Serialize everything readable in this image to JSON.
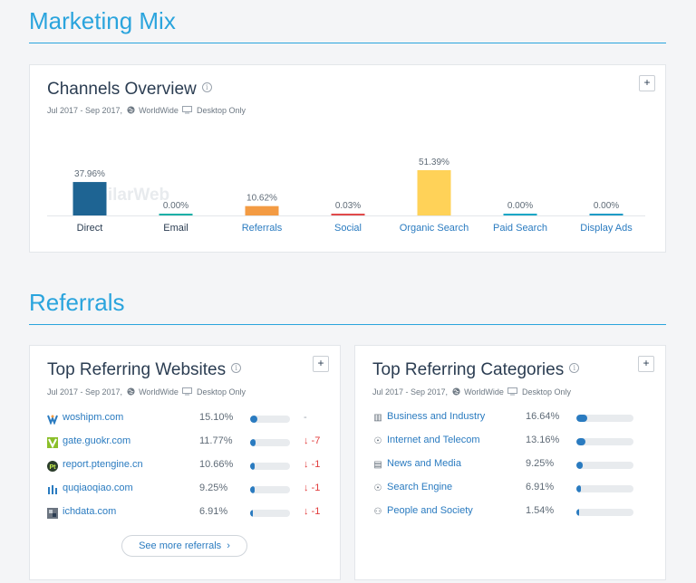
{
  "marketing_mix": {
    "title": "Marketing Mix"
  },
  "channels": {
    "title": "Channels Overview",
    "date_range": "Jul 2017 - Sep 2017,",
    "region": "WorldWide",
    "device": "Desktop Only",
    "add_label": "+",
    "watermark": "SimilarWeb"
  },
  "chart_data": {
    "type": "bar",
    "categories": [
      "Direct",
      "Email",
      "Referrals",
      "Social",
      "Organic Search",
      "Paid Search",
      "Display Ads"
    ],
    "values": [
      37.96,
      0.0,
      10.62,
      0.03,
      51.39,
      0.0,
      0.0
    ],
    "value_labels": [
      "37.96%",
      "0.00%",
      "10.62%",
      "0.03%",
      "51.39%",
      "0.00%",
      "0.00%"
    ],
    "colors": [
      "#1e6493",
      "#1ab0a6",
      "#f39b43",
      "#e14a4a",
      "#ffd258",
      "#16a7c6",
      "#1e9bc6"
    ],
    "label_colors": [
      "#2b3d52",
      "#2b3d52",
      "#2a7bc0",
      "#2a7bc0",
      "#2a7bc0",
      "#2a7bc0",
      "#2a7bc0"
    ],
    "ylim": [
      0,
      51.39
    ]
  },
  "referrals": {
    "title": "Referrals"
  },
  "top_websites": {
    "title": "Top Referring Websites",
    "date_range": "Jul 2017 - Sep 2017,",
    "region": "WorldWide",
    "device": "Desktop Only",
    "add_label": "+",
    "rows": [
      {
        "name": "woshipm.com",
        "pct": "15.10%",
        "share": 0.151,
        "change": "-",
        "icon": "woshipm-icon",
        "icon_color": "#2a7bc0"
      },
      {
        "name": "gate.guokr.com",
        "pct": "11.77%",
        "share": 0.1177,
        "change": "↓ -7",
        "icon": "guokr-icon",
        "icon_color": "#8bbf2a"
      },
      {
        "name": "report.ptengine.cn",
        "pct": "10.66%",
        "share": 0.1066,
        "change": "↓ -1",
        "icon": "ptengine-icon",
        "icon_color": "#2b3d2b"
      },
      {
        "name": "quqiaoqiao.com",
        "pct": "9.25%",
        "share": 0.0925,
        "change": "↓ -1",
        "icon": "quqiaoqiao-icon",
        "icon_color": "#2a7bc0"
      },
      {
        "name": "ichdata.com",
        "pct": "6.91%",
        "share": 0.0691,
        "change": "↓ -1",
        "icon": "ichdata-icon",
        "icon_color": "#6b7480"
      }
    ],
    "see_more": "See more referrals"
  },
  "top_categories": {
    "title": "Top Referring Categories",
    "date_range": "Jul 2017 - Sep 2017,",
    "region": "WorldWide",
    "device": "Desktop Only",
    "add_label": "+",
    "rows": [
      {
        "name": "Business and Industry",
        "pct": "16.64%",
        "share": 0.1664,
        "icon": "factory-icon",
        "glyph": "▥"
      },
      {
        "name": "Internet and Telecom",
        "pct": "13.16%",
        "share": 0.1316,
        "icon": "compass-icon",
        "glyph": "☉"
      },
      {
        "name": "News and Media",
        "pct": "9.25%",
        "share": 0.0925,
        "icon": "newspaper-icon",
        "glyph": "▤"
      },
      {
        "name": "Search Engine",
        "pct": "6.91%",
        "share": 0.0691,
        "icon": "compass-icon",
        "glyph": "☉"
      },
      {
        "name": "People and Society",
        "pct": "1.54%",
        "share": 0.0154,
        "icon": "people-icon",
        "glyph": "⚇"
      }
    ]
  }
}
